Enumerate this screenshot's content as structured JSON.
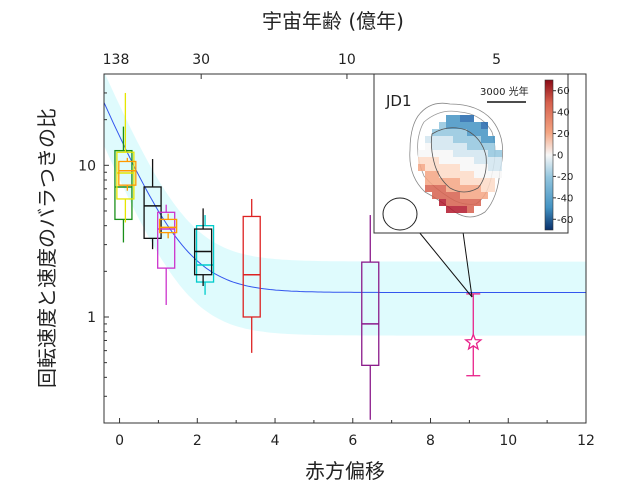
{
  "chart_data": {
    "type": "box",
    "xlabel": "赤方偏移",
    "ylabel": "回転速度と速度のバラつきの比",
    "top_axis_label": "宇宙年齢 (億年)",
    "xlim": [
      -0.4,
      12
    ],
    "ylim": [
      0.2,
      40
    ],
    "yscale": "log",
    "x_ticks": [
      0,
      2,
      4,
      6,
      8,
      10,
      12
    ],
    "y_ticks": [
      {
        "value": 1,
        "label": "1"
      },
      {
        "value": 10,
        "label": "10"
      }
    ],
    "top_ticks": [
      {
        "label": "138",
        "z": -0.4
      },
      {
        "label": "30",
        "z": 2.1
      },
      {
        "label": "10",
        "z": 5.85
      },
      {
        "label": "5",
        "z": 9.7
      }
    ],
    "trend": {
      "a": 1.45,
      "b": 24.5,
      "c": 1.38,
      "band_low_factor": 0.52,
      "band_high_factor": 1.6
    },
    "boxes": [
      {
        "x": 0.1,
        "color": "#1a8f1a",
        "q1": 4.4,
        "median": 7.2,
        "q3": 12.5,
        "min": 3.1,
        "max": 18.0
      },
      {
        "x": 0.15,
        "color": "#e6e600",
        "q1": 6.0,
        "median": 8.9,
        "q3": 12.2,
        "min": 4.2,
        "max": 30.0
      },
      {
        "x": 0.2,
        "color": "#ff9900",
        "q1": 7.4,
        "median": 9.2,
        "q3": 10.6,
        "min": 6.8,
        "max": 11.2
      },
      {
        "x": 0.85,
        "color": "#111111",
        "q1": 3.3,
        "median": 5.4,
        "q3": 7.2,
        "min": 2.8,
        "max": 11.0
      },
      {
        "x": 1.2,
        "color": "#cc33cc",
        "q1": 2.1,
        "median": 3.8,
        "q3": 4.9,
        "min": 1.2,
        "max": 5.5
      },
      {
        "x": 1.25,
        "color": "#ff9900",
        "q1": 3.6,
        "median": 3.9,
        "q3": 4.4,
        "min": 3.3,
        "max": 4.8
      },
      {
        "x": 2.2,
        "color": "#00cccc",
        "q1": 1.7,
        "median": 2.2,
        "q3": 4.0,
        "min": 1.4,
        "max": 4.7
      },
      {
        "x": 2.15,
        "color": "#111111",
        "q1": 1.9,
        "median": 2.7,
        "q3": 3.8,
        "min": 1.6,
        "max": 5.2
      },
      {
        "x": 3.4,
        "color": "#dd2222",
        "q1": 1.0,
        "median": 1.9,
        "q3": 4.6,
        "min": 0.58,
        "max": 6.0
      },
      {
        "x": 6.45,
        "color": "#8b1a8b",
        "q1": 0.48,
        "median": 0.9,
        "q3": 2.3,
        "min": 0.21,
        "max": 4.7
      }
    ],
    "point": {
      "label": "JD1",
      "x": 9.1,
      "y": 0.68,
      "yerr_low": 0.41,
      "yerr_high": 1.42,
      "color": "#e8228a"
    },
    "colors": {
      "trend": "#3355ee",
      "band": "#dffbfd",
      "point": "#e8228a"
    }
  },
  "inset": {
    "title": "JD1",
    "scale_label": "3000 光年",
    "colorbar_ticks": [
      "60",
      "40",
      "20",
      "0",
      "-20",
      "-40",
      "-60"
    ],
    "colorbar_range": [
      -70,
      70
    ]
  }
}
